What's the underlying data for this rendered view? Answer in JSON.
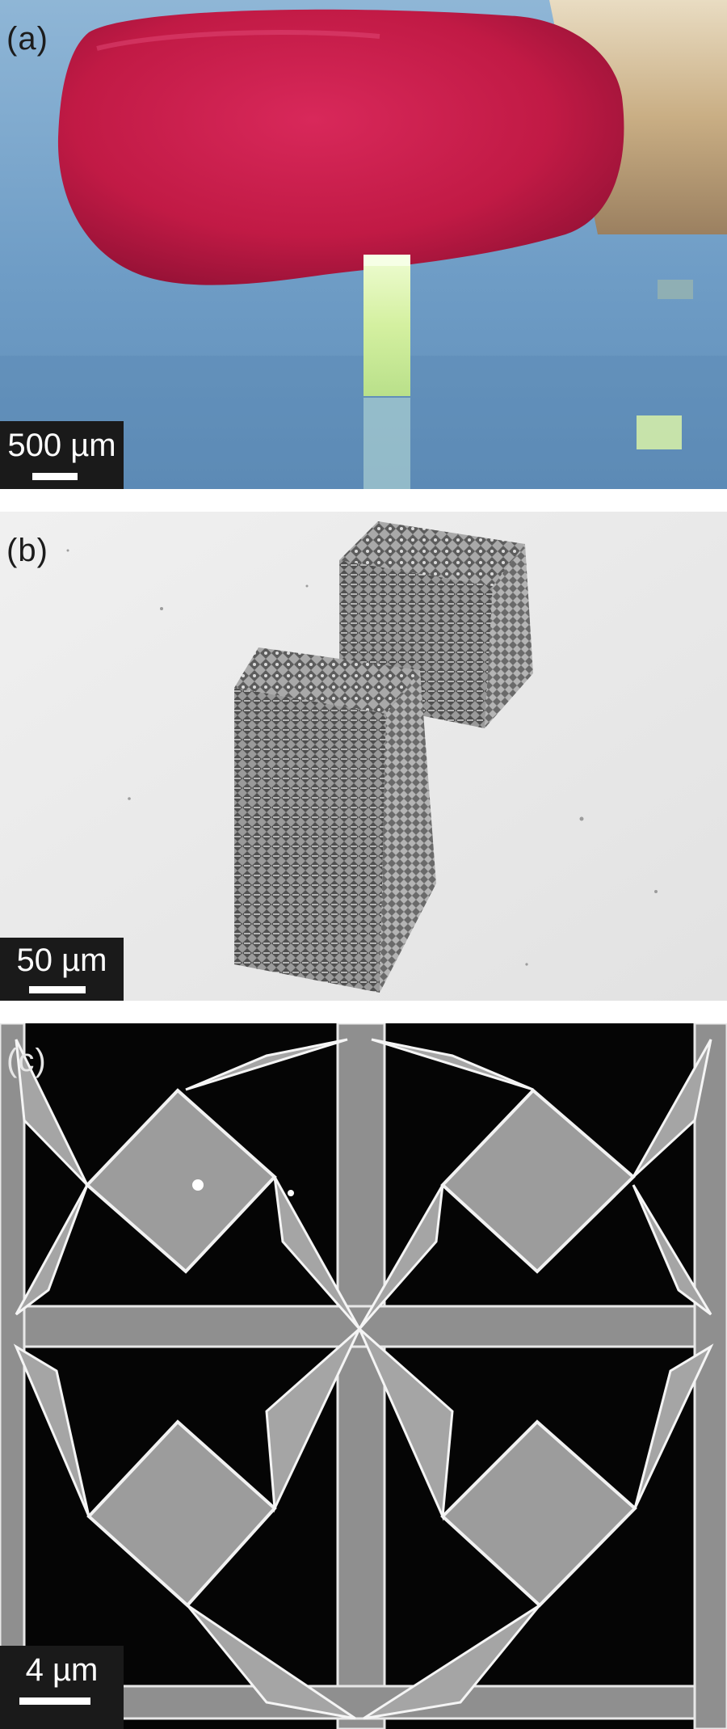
{
  "panels": [
    {
      "label": "(a)",
      "scale_bar": "500 µm",
      "colors": {
        "background": "#6f9dc6",
        "match_head": "#c11a45",
        "match_stick": "#d8c3a0",
        "sample": "#d9f2a8"
      }
    },
    {
      "label": "(b)",
      "scale_bar": "50 µm",
      "colors": {
        "background": "#e9e9e9",
        "lattice": "#8a8a8a"
      }
    },
    {
      "label": "(c)",
      "scale_bar": "4 µm",
      "colors": {
        "background": "#050505",
        "structure": "#9a9a9a",
        "edge": "#f2f2f2"
      }
    }
  ]
}
